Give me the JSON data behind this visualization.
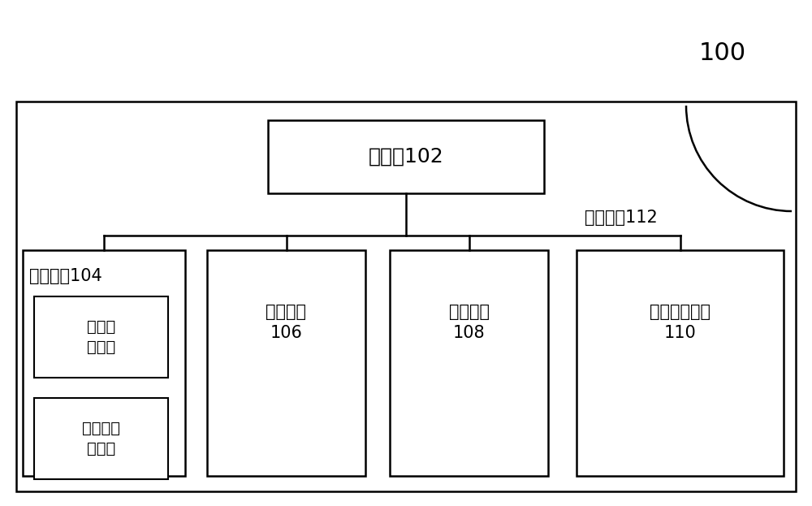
{
  "bg_color": "#ffffff",
  "label_100": "100",
  "label_100_fontsize": 22,
  "label_bus": "总线系统112",
  "label_bus_fontsize": 15,
  "processor_label": "处理器102",
  "processor_fontsize": 18,
  "child_labels": [
    "存储装置104",
    "输入装置\n106",
    "输出装置\n108",
    "图像采集装置\n110"
  ],
  "child_fontsize": 15,
  "sub_labels": [
    "易失性\n存储器",
    "非易失性\n存储器"
  ],
  "sub_fontsize": 14,
  "line_color": "#000000",
  "box_edge_color": "#000000",
  "box_face_color": "#ffffff"
}
